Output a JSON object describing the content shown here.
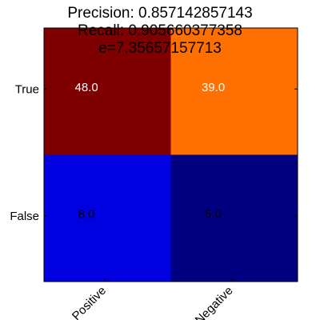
{
  "chart_data": {
    "type": "heatmap",
    "title_lines": [
      "Precision: 0.857142857143",
      "Recall: 0.905660377358",
      "e=7.35657157713"
    ],
    "row_labels": [
      "True",
      "False"
    ],
    "col_labels": [
      "Positive",
      "Negative"
    ],
    "values": [
      [
        48,
        39
      ],
      [
        8,
        5
      ]
    ],
    "cell_labels": [
      [
        "48.0",
        "39.0"
      ],
      [
        "8.0",
        "5.0"
      ]
    ],
    "colormap": "jet",
    "cell_colors": [
      [
        "#7f0000",
        "#ff7000"
      ],
      [
        "#0000e0",
        "#000080"
      ]
    ],
    "cell_text_colors": [
      [
        "#ffffff",
        "#ffffff"
      ],
      [
        "#000000",
        "#000000"
      ]
    ],
    "grid": false
  }
}
